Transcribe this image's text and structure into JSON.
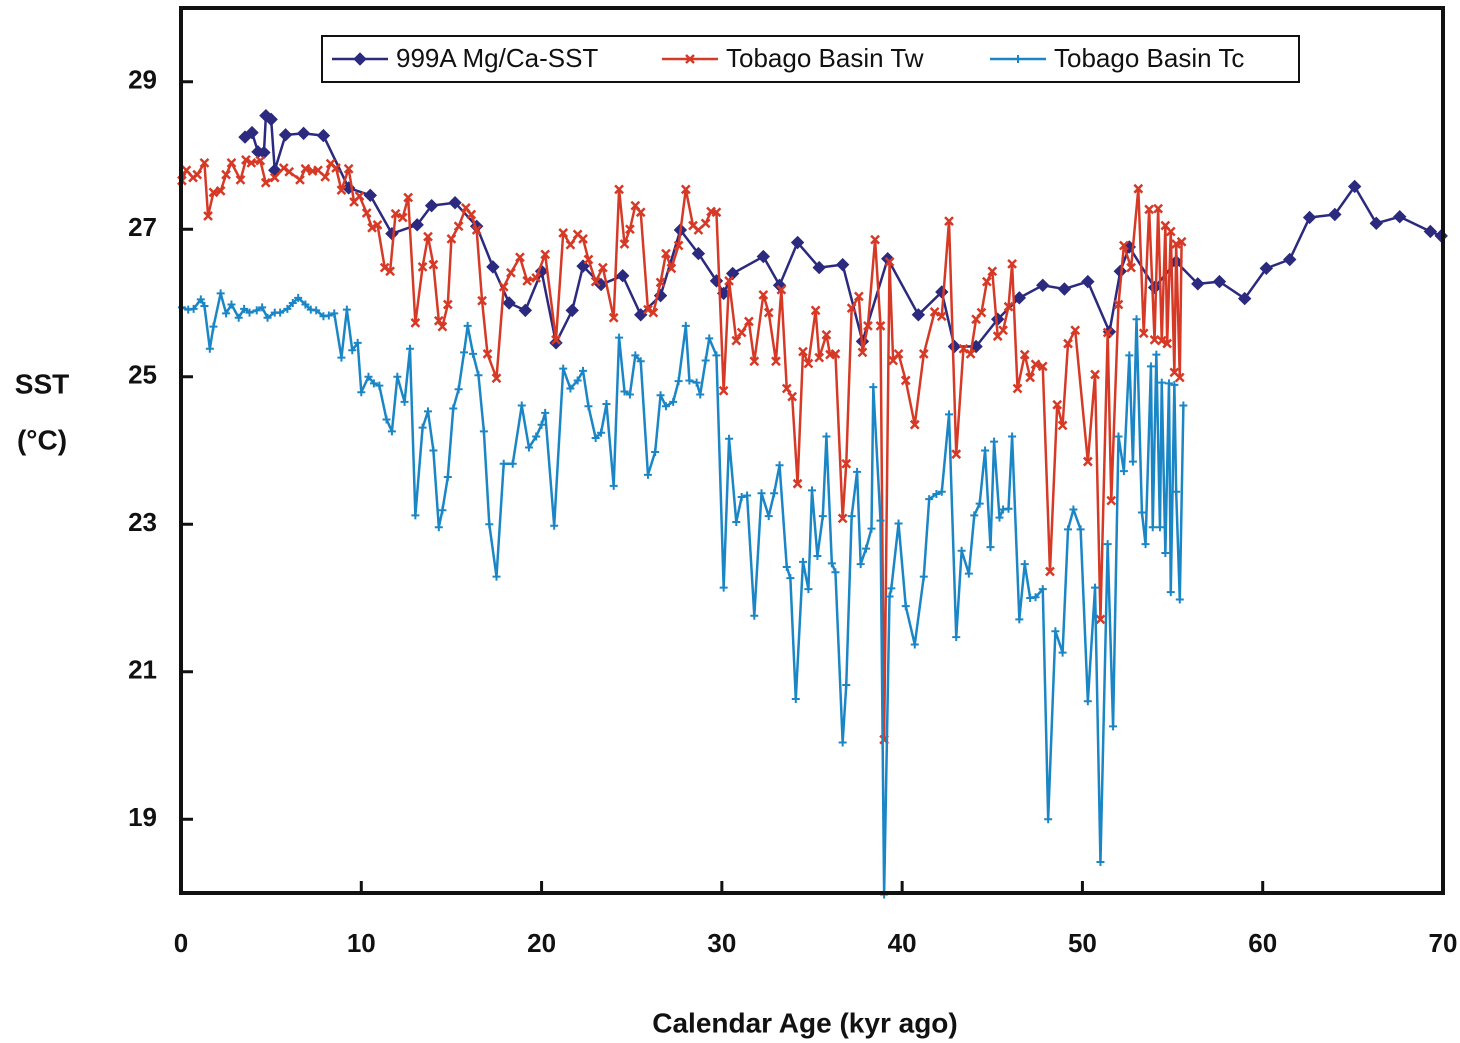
{
  "chart_data": {
    "type": "line",
    "xlabel": "Calendar Age (kyr ago)",
    "ylabel": [
      "SST",
      "(°C)"
    ],
    "xlim": [
      0,
      70
    ],
    "xticks": [
      0,
      10,
      20,
      30,
      40,
      50,
      60,
      70
    ],
    "ylim": [
      18,
      30
    ],
    "yticks": [
      19,
      21,
      23,
      25,
      27,
      29
    ],
    "legend": "top",
    "series": [
      {
        "name": "999A Mg/Ca-SST",
        "color": "#2b2a7e",
        "marker": "diamond",
        "x": [
          3.55,
          3.94,
          4.27,
          4.6,
          4.71,
          5.0,
          5.2,
          5.8,
          6.8,
          7.9,
          9.3,
          10.5,
          11.7,
          13.1,
          13.9,
          15.2,
          16.4,
          17.3,
          18.2,
          19.1,
          20.0,
          20.8,
          21.7,
          22.3,
          23.3,
          24.5,
          25.5,
          26.6,
          27.7,
          28.7,
          29.7,
          30.1,
          30.6,
          32.3,
          33.2,
          34.2,
          35.4,
          36.7,
          37.8,
          39.2,
          40.9,
          42.2,
          42.9,
          44.1,
          45.3,
          46.5,
          47.8,
          49.0,
          50.3,
          51.5,
          52.1,
          52.6,
          54.0,
          55.2,
          56.4,
          57.6,
          59.0,
          60.2,
          61.5,
          62.6,
          64.0,
          65.1,
          66.3,
          67.6,
          69.3,
          69.9
        ],
        "values": [
          28.25,
          28.31,
          28.05,
          28.04,
          28.54,
          28.49,
          27.8,
          28.28,
          28.3,
          28.27,
          27.56,
          27.46,
          26.94,
          27.06,
          27.32,
          27.36,
          27.04,
          26.49,
          26.0,
          25.9,
          26.43,
          25.46,
          25.9,
          26.5,
          26.25,
          26.37,
          25.84,
          26.1,
          26.99,
          26.67,
          26.3,
          26.13,
          26.4,
          26.63,
          26.24,
          26.82,
          26.48,
          26.52,
          25.48,
          26.6,
          25.84,
          26.15,
          25.41,
          25.41,
          25.78,
          26.07,
          26.24,
          26.19,
          26.29,
          25.61,
          26.43,
          26.76,
          26.21,
          26.56,
          26.26,
          26.29,
          26.06,
          26.47,
          26.59,
          27.16,
          27.2,
          27.58,
          27.08,
          27.17,
          26.97,
          26.91
        ]
      },
      {
        "name": "Tobago Basin Tw",
        "color": "#d63a26",
        "marker": "x",
        "x": [
          0.05,
          0.3,
          0.67,
          0.9,
          1.3,
          1.5,
          1.8,
          2.2,
          2.5,
          2.8,
          3.3,
          3.6,
          3.9,
          4.4,
          4.7,
          5.2,
          5.7,
          6.0,
          6.6,
          6.9,
          7.3,
          7.6,
          8.0,
          8.3,
          8.6,
          8.9,
          9.3,
          9.6,
          9.9,
          10.3,
          10.6,
          10.9,
          11.3,
          11.6,
          11.9,
          12.3,
          12.6,
          13.0,
          13.4,
          13.7,
          14.0,
          14.3,
          14.5,
          14.8,
          15.0,
          15.4,
          15.8,
          16.1,
          16.4,
          16.7,
          17.0,
          17.5,
          17.9,
          18.3,
          18.8,
          19.2,
          19.7,
          20.2,
          20.8,
          21.2,
          21.6,
          22.0,
          22.3,
          22.6,
          23.0,
          23.4,
          24.0,
          24.3,
          24.6,
          24.9,
          25.2,
          25.5,
          25.9,
          26.2,
          26.6,
          26.9,
          27.2,
          27.6,
          28.0,
          28.4,
          28.7,
          29.1,
          29.4,
          29.7,
          30.1,
          30.4,
          30.8,
          31.1,
          31.5,
          31.8,
          32.3,
          32.6,
          33.0,
          33.3,
          33.6,
          33.9,
          34.2,
          34.5,
          34.8,
          35.2,
          35.4,
          35.8,
          36.0,
          36.3,
          36.7,
          36.9,
          37.2,
          37.6,
          37.8,
          38.1,
          38.5,
          38.8,
          39.0,
          39.3,
          39.5,
          39.8,
          40.2,
          40.7,
          41.2,
          41.8,
          42.2,
          42.6,
          43.0,
          43.4,
          43.8,
          44.1,
          44.4,
          44.7,
          45.0,
          45.3,
          45.6,
          45.9,
          46.1,
          46.4,
          46.8,
          47.1,
          47.4,
          47.8,
          48.2,
          48.6,
          48.9,
          49.2,
          49.6,
          50.3,
          50.7,
          51.0,
          51.4,
          51.6,
          52.0,
          52.3,
          52.7,
          53.1,
          53.4,
          53.7,
          54.0,
          54.2,
          54.4,
          54.6,
          54.7,
          54.9,
          55.1,
          55.2,
          55.4,
          55.5
        ],
        "values": [
          27.66,
          27.8,
          27.7,
          27.74,
          27.9,
          27.18,
          27.5,
          27.52,
          27.74,
          27.9,
          27.67,
          27.94,
          27.9,
          27.93,
          27.63,
          27.7,
          27.83,
          27.78,
          27.67,
          27.82,
          27.79,
          27.8,
          27.71,
          27.89,
          27.83,
          27.53,
          27.82,
          27.37,
          27.45,
          27.22,
          27.02,
          27.06,
          26.48,
          26.43,
          27.21,
          27.16,
          27.43,
          25.73,
          26.49,
          26.9,
          26.52,
          25.76,
          25.68,
          25.98,
          26.87,
          27.04,
          27.29,
          27.2,
          26.99,
          26.03,
          25.31,
          24.98,
          26.22,
          26.41,
          26.62,
          26.3,
          26.34,
          26.66,
          25.5,
          26.95,
          26.79,
          26.93,
          26.87,
          26.59,
          26.29,
          26.48,
          25.8,
          27.54,
          26.8,
          27.0,
          27.32,
          27.23,
          25.91,
          25.87,
          26.28,
          26.67,
          26.47,
          26.78,
          27.54,
          27.05,
          26.99,
          27.08,
          27.24,
          27.23,
          24.81,
          26.3,
          25.49,
          25.6,
          25.75,
          25.21,
          26.11,
          25.87,
          25.21,
          26.18,
          24.84,
          24.73,
          23.55,
          25.34,
          25.18,
          25.9,
          25.26,
          25.57,
          25.3,
          25.31,
          23.08,
          23.82,
          25.93,
          26.09,
          25.33,
          25.69,
          26.86,
          25.69,
          20.08,
          26.56,
          25.22,
          25.31,
          24.95,
          24.35,
          25.31,
          25.88,
          25.82,
          27.11,
          23.95,
          25.38,
          25.31,
          25.78,
          25.87,
          26.29,
          26.43,
          25.55,
          25.63,
          25.95,
          26.53,
          24.84,
          25.3,
          24.99,
          25.17,
          25.14,
          22.36,
          24.62,
          24.34,
          25.45,
          25.63,
          23.85,
          25.03,
          21.71,
          25.6,
          23.32,
          25.98,
          26.78,
          26.48,
          27.55,
          25.59,
          27.27,
          25.5,
          27.28,
          25.49,
          27.05,
          25.45,
          26.97,
          25.06,
          26.8,
          24.99,
          26.83
        ]
      },
      {
        "name": "Tobago Basin Tc",
        "color": "#1b86c6",
        "marker": "plus",
        "x": [
          0.05,
          0.4,
          0.7,
          1.1,
          1.3,
          1.6,
          1.8,
          2.2,
          2.5,
          2.8,
          3.2,
          3.5,
          3.8,
          4.2,
          4.5,
          4.8,
          5.2,
          5.5,
          5.9,
          6.2,
          6.5,
          6.9,
          7.2,
          7.5,
          7.9,
          8.2,
          8.5,
          8.9,
          9.2,
          9.5,
          9.8,
          10.0,
          10.4,
          10.7,
          11.0,
          11.4,
          11.7,
          12.0,
          12.4,
          12.7,
          13.0,
          13.4,
          13.7,
          14.0,
          14.3,
          14.5,
          14.8,
          15.1,
          15.4,
          15.7,
          15.9,
          16.2,
          16.5,
          16.8,
          17.1,
          17.5,
          17.9,
          18.4,
          18.9,
          19.3,
          19.7,
          20.0,
          20.2,
          20.7,
          21.2,
          21.6,
          22.0,
          22.3,
          22.6,
          23.0,
          23.3,
          23.6,
          24.0,
          24.3,
          24.6,
          24.9,
          25.2,
          25.5,
          25.9,
          26.3,
          26.6,
          26.9,
          27.3,
          27.6,
          28.0,
          28.2,
          28.6,
          28.8,
          29.1,
          29.3,
          29.7,
          30.1,
          30.4,
          30.8,
          31.1,
          31.4,
          31.8,
          32.2,
          32.6,
          32.9,
          33.2,
          33.6,
          33.8,
          34.1,
          34.5,
          34.8,
          35.0,
          35.3,
          35.6,
          35.8,
          36.1,
          36.3,
          36.7,
          36.9,
          37.2,
          37.5,
          37.7,
          38.0,
          38.3,
          38.4,
          38.8,
          39.0,
          39.3,
          39.4,
          39.8,
          40.2,
          40.7,
          41.2,
          41.5,
          41.9,
          42.2,
          42.6,
          43.0,
          43.3,
          43.7,
          44.0,
          44.3,
          44.6,
          44.9,
          45.1,
          45.4,
          45.6,
          45.9,
          46.1,
          46.5,
          46.8,
          47.1,
          47.4,
          47.8,
          48.1,
          48.5,
          48.9,
          49.2,
          49.5,
          49.9,
          50.3,
          50.7,
          51.0,
          51.4,
          51.7,
          52.0,
          52.3,
          52.6,
          52.8,
          53.0,
          53.3,
          53.5,
          53.8,
          53.9,
          54.1,
          54.3,
          54.4,
          54.6,
          54.8,
          54.9,
          55.1,
          55.2,
          55.4,
          55.6
        ],
        "values": [
          25.94,
          25.91,
          25.92,
          26.05,
          25.96,
          25.38,
          25.68,
          26.13,
          25.86,
          25.98,
          25.8,
          25.92,
          25.87,
          25.9,
          25.94,
          25.8,
          25.87,
          25.87,
          25.92,
          26.0,
          26.07,
          25.98,
          25.91,
          25.9,
          25.82,
          25.83,
          25.86,
          25.26,
          25.91,
          25.36,
          25.46,
          24.79,
          25.0,
          24.91,
          24.88,
          24.42,
          24.26,
          25.0,
          24.66,
          25.38,
          23.12,
          24.31,
          24.53,
          24.0,
          22.96,
          23.19,
          23.64,
          24.57,
          24.83,
          25.33,
          25.69,
          25.31,
          25.02,
          24.26,
          23.0,
          22.29,
          23.82,
          23.82,
          24.61,
          24.04,
          24.19,
          24.35,
          24.51,
          22.98,
          25.11,
          24.84,
          24.95,
          25.08,
          24.6,
          24.17,
          24.24,
          24.63,
          23.52,
          25.53,
          24.8,
          24.76,
          25.29,
          25.21,
          23.67,
          23.98,
          24.75,
          24.6,
          24.66,
          24.94,
          25.69,
          24.95,
          24.92,
          24.76,
          25.22,
          25.52,
          25.29,
          22.14,
          24.16,
          23.03,
          23.37,
          23.39,
          21.76,
          23.42,
          23.11,
          23.42,
          23.8,
          22.42,
          22.27,
          20.63,
          22.49,
          22.12,
          23.46,
          22.57,
          23.11,
          24.19,
          22.47,
          22.35,
          20.04,
          20.82,
          23.11,
          23.71,
          22.46,
          22.67,
          22.94,
          24.86,
          23.05,
          17.98,
          22.02,
          22.13,
          23.01,
          21.89,
          21.37,
          22.29,
          23.34,
          23.41,
          23.44,
          24.49,
          21.47,
          22.64,
          22.33,
          23.12,
          23.28,
          24.0,
          22.69,
          24.12,
          23.09,
          23.2,
          23.21,
          24.19,
          21.71,
          22.46,
          22.0,
          22.01,
          22.12,
          19.0,
          21.55,
          21.26,
          22.93,
          23.2,
          22.93,
          20.6,
          22.14,
          18.42,
          22.73,
          20.26,
          24.19,
          23.72,
          25.29,
          23.85,
          25.78,
          23.16,
          22.73,
          25.14,
          22.96,
          25.3,
          22.96,
          24.92,
          22.61,
          24.91,
          22.08,
          24.89,
          23.44,
          21.98,
          24.61
        ]
      }
    ]
  }
}
